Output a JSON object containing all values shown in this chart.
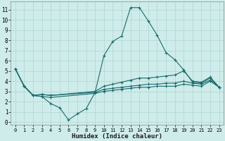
{
  "xlabel": "Humidex (Indice chaleur)",
  "bg_color": "#ceecea",
  "grid_color": "#aed4d2",
  "line_color": "#1a6b6b",
  "xlim": [
    -0.5,
    23.5
  ],
  "ylim": [
    -0.3,
    11.8
  ],
  "xticks": [
    0,
    1,
    2,
    3,
    4,
    5,
    6,
    7,
    8,
    9,
    10,
    11,
    12,
    13,
    14,
    15,
    16,
    17,
    18,
    19,
    20,
    21,
    22,
    23
  ],
  "yticks": [
    0,
    1,
    2,
    3,
    4,
    5,
    6,
    7,
    8,
    9,
    10,
    11
  ],
  "lines": [
    {
      "x": [
        0,
        1,
        2,
        3,
        4,
        5,
        6,
        7,
        8,
        9,
        10,
        11,
        12,
        13,
        14,
        15,
        16,
        17,
        18,
        19,
        20,
        21,
        22,
        23
      ],
      "y": [
        5.2,
        3.5,
        2.6,
        2.5,
        1.8,
        1.4,
        0.2,
        0.8,
        1.3,
        2.9,
        6.5,
        7.9,
        8.4,
        11.2,
        11.2,
        9.9,
        8.5,
        6.8,
        6.1,
        5.1,
        3.9,
        3.8,
        4.3,
        3.4
      ]
    },
    {
      "x": [
        0,
        1,
        2,
        3,
        4,
        9,
        10,
        11,
        12,
        13,
        14,
        15,
        16,
        17,
        18,
        19,
        20,
        21,
        22,
        23
      ],
      "y": [
        5.2,
        3.5,
        2.6,
        2.7,
        2.6,
        3.0,
        3.5,
        3.7,
        3.9,
        4.1,
        4.3,
        4.3,
        4.4,
        4.5,
        4.6,
        5.0,
        4.0,
        3.9,
        4.4,
        3.4
      ]
    },
    {
      "x": [
        0,
        1,
        2,
        3,
        4,
        9,
        10,
        11,
        12,
        13,
        14,
        15,
        16,
        17,
        18,
        19,
        20,
        21,
        22,
        23
      ],
      "y": [
        5.2,
        3.5,
        2.6,
        2.7,
        2.6,
        2.9,
        3.2,
        3.3,
        3.4,
        3.5,
        3.6,
        3.7,
        3.7,
        3.8,
        3.8,
        4.0,
        3.8,
        3.7,
        4.1,
        3.4
      ]
    },
    {
      "x": [
        0,
        1,
        2,
        3,
        4,
        9,
        10,
        11,
        12,
        13,
        14,
        15,
        16,
        17,
        18,
        19,
        20,
        21,
        22,
        23
      ],
      "y": [
        5.2,
        3.5,
        2.6,
        2.5,
        2.4,
        2.8,
        3.0,
        3.1,
        3.2,
        3.3,
        3.4,
        3.4,
        3.5,
        3.5,
        3.5,
        3.7,
        3.6,
        3.5,
        4.0,
        3.4
      ]
    }
  ]
}
